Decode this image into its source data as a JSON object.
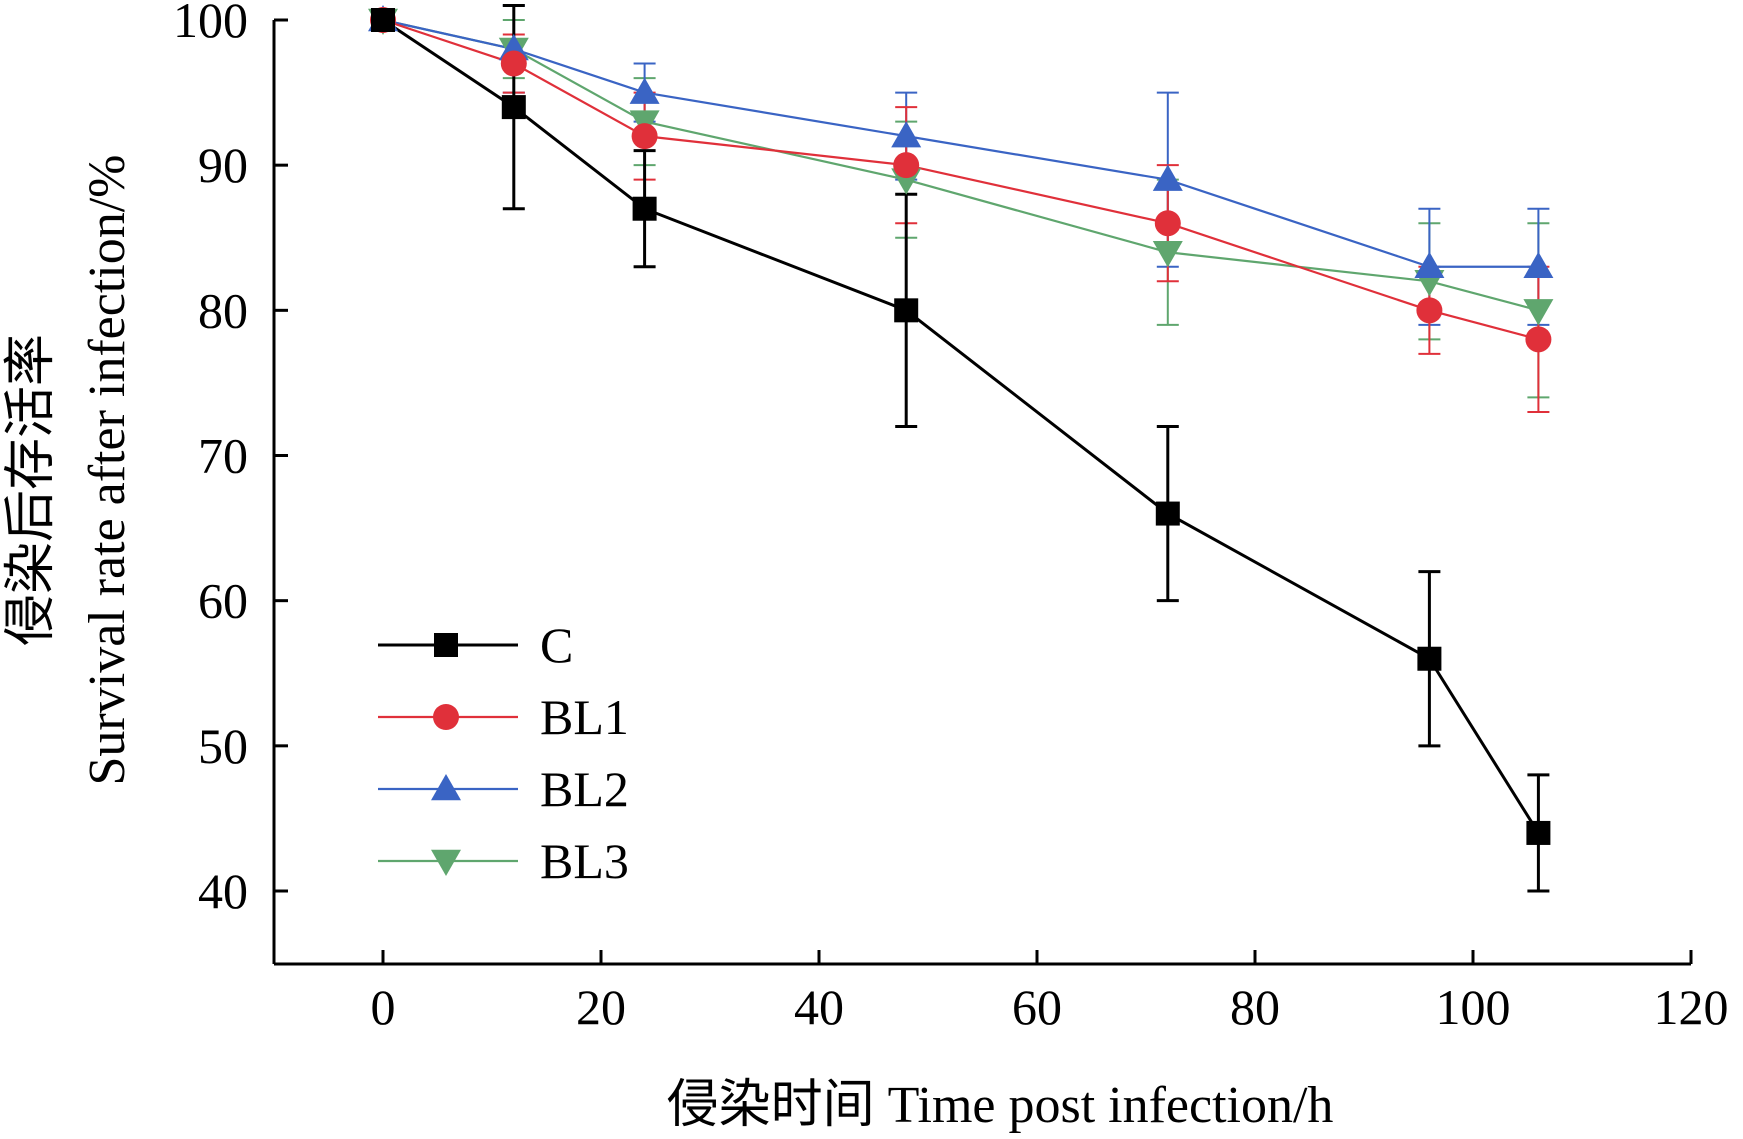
{
  "chart_data": {
    "type": "line",
    "xlabel": "侵染时间 Time post infection/h",
    "ylabel_lines": [
      "侵染后存活率",
      "Survival rate after infection/%"
    ],
    "xlim": [
      -10,
      120
    ],
    "ylim": [
      35,
      100
    ],
    "xticks": [
      0,
      20,
      40,
      60,
      80,
      100,
      120
    ],
    "yticks": [
      40,
      50,
      60,
      70,
      80,
      90,
      100
    ],
    "x": [
      0,
      12,
      24,
      48,
      72,
      96,
      106
    ],
    "legend_position": "lower-left",
    "grid": false,
    "series": [
      {
        "name": "C",
        "color": "#000000",
        "marker": "square",
        "values": [
          100,
          94,
          87,
          80,
          66,
          56,
          44
        ],
        "errors": [
          0,
          7,
          4,
          8,
          6,
          6,
          4
        ]
      },
      {
        "name": "BL1",
        "color": "#e0303a",
        "marker": "circle",
        "values": [
          100,
          97,
          92,
          90,
          86,
          80,
          78
        ],
        "errors": [
          0,
          2,
          3,
          4,
          4,
          3,
          5
        ]
      },
      {
        "name": "BL2",
        "color": "#3a64c4",
        "marker": "triangle-up",
        "values": [
          100,
          98,
          95,
          92,
          89,
          83,
          83
        ],
        "errors": [
          0,
          3,
          2,
          3,
          6,
          4,
          4
        ]
      },
      {
        "name": "BL3",
        "color": "#5fa66e",
        "marker": "triangle-down",
        "values": [
          100,
          98,
          93,
          89,
          84,
          82,
          80
        ],
        "errors": [
          0,
          2,
          3,
          4,
          5,
          4,
          6
        ]
      }
    ]
  }
}
